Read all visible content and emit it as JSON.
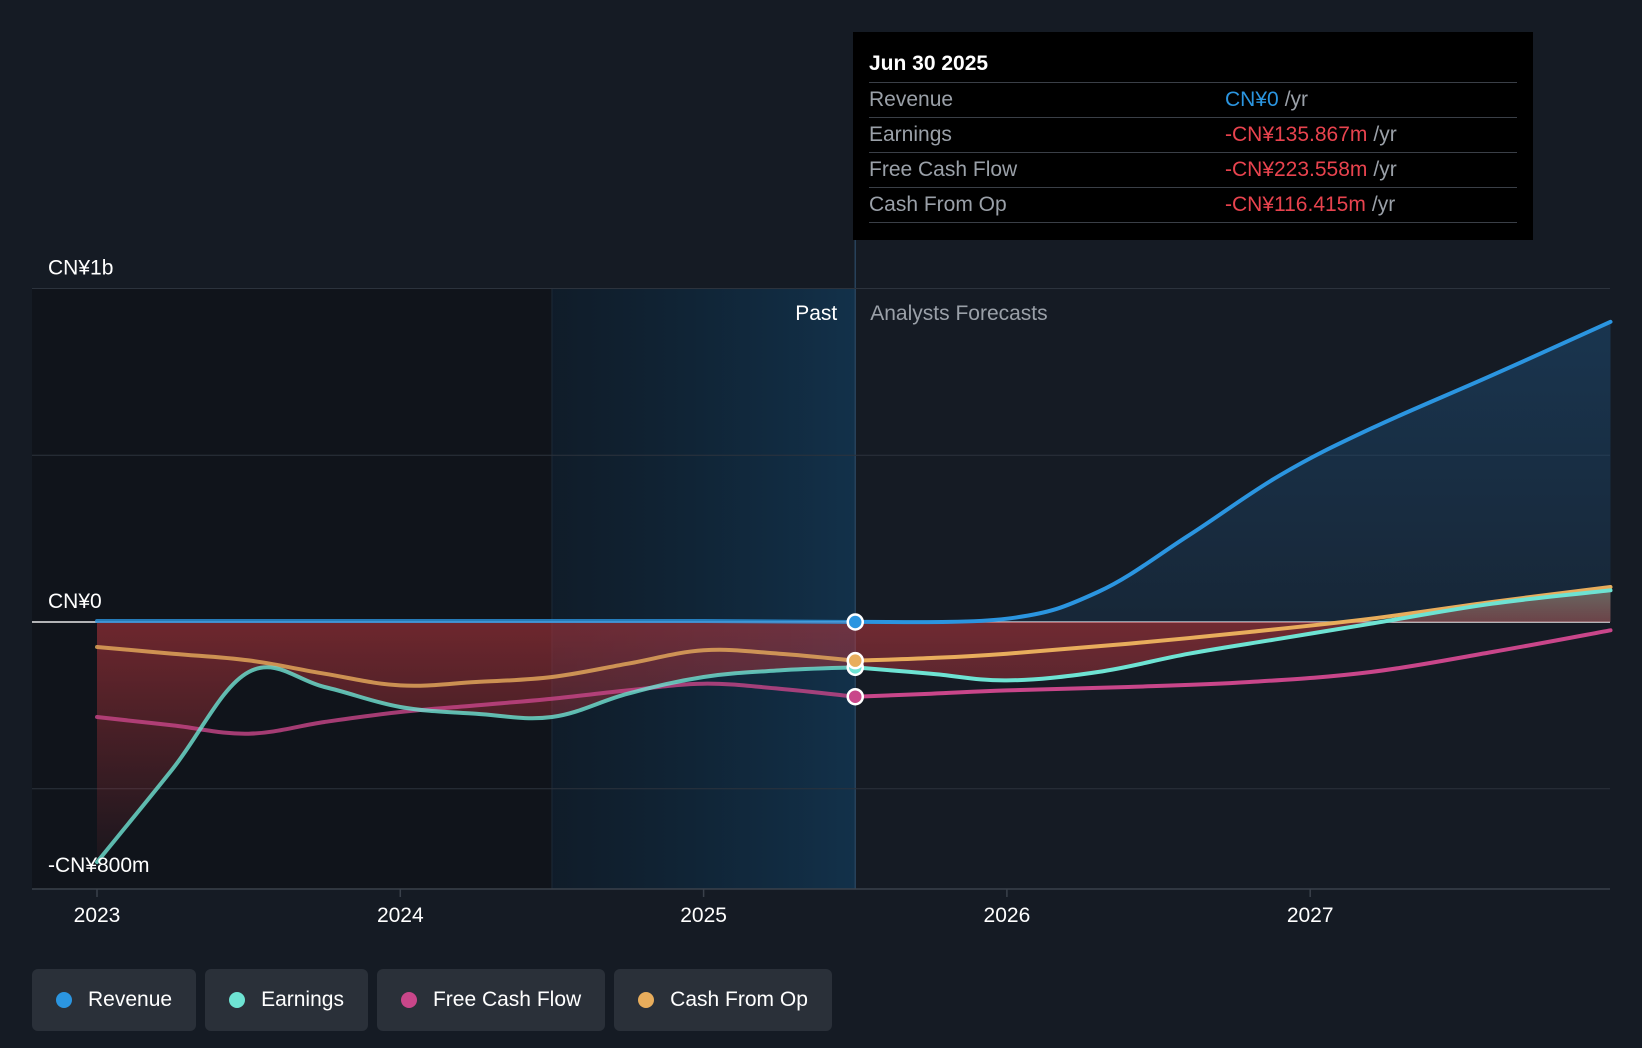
{
  "chart_data": {
    "type": "line",
    "x_ticks": [
      "2023",
      "2024",
      "2025",
      "2026",
      "2027"
    ],
    "y_ticks": [
      {
        "label": "CN¥1b",
        "value": 1000
      },
      {
        "label": "CN¥0",
        "value": 0
      },
      {
        "label": "-CN¥800m",
        "value": -800
      }
    ],
    "ylim": [
      -800,
      1000
    ],
    "xlim": [
      2022.79,
      2027.99
    ],
    "past_label": "Past",
    "forecast_label": "Analysts Forecasts",
    "divider_x": 2025.5,
    "highlight_start_x": 2024.5,
    "series": [
      {
        "name": "Revenue",
        "color": "#2b95e0",
        "points": [
          [
            2023.0,
            3
          ],
          [
            2024.0,
            3
          ],
          [
            2025.0,
            3
          ],
          [
            2025.5,
            0
          ],
          [
            2026.0,
            10
          ],
          [
            2026.3,
            90
          ],
          [
            2026.6,
            260
          ],
          [
            2026.9,
            440
          ],
          [
            2027.2,
            580
          ],
          [
            2027.6,
            740
          ],
          [
            2027.99,
            900
          ]
        ]
      },
      {
        "name": "Earnings",
        "color": "#6ee3d3",
        "points": [
          [
            2023.0,
            -720
          ],
          [
            2023.25,
            -440
          ],
          [
            2023.5,
            -150
          ],
          [
            2023.75,
            -195
          ],
          [
            2024.0,
            -255
          ],
          [
            2024.25,
            -275
          ],
          [
            2024.5,
            -285
          ],
          [
            2024.75,
            -215
          ],
          [
            2025.0,
            -165
          ],
          [
            2025.25,
            -145
          ],
          [
            2025.5,
            -136
          ],
          [
            2025.75,
            -155
          ],
          [
            2026.0,
            -175
          ],
          [
            2026.3,
            -150
          ],
          [
            2026.6,
            -95
          ],
          [
            2026.9,
            -50
          ],
          [
            2027.2,
            -5
          ],
          [
            2027.6,
            55
          ],
          [
            2027.99,
            95
          ]
        ]
      },
      {
        "name": "Free Cash Flow",
        "color": "#c9468a",
        "points": [
          [
            2023.0,
            -285
          ],
          [
            2023.25,
            -310
          ],
          [
            2023.5,
            -335
          ],
          [
            2023.75,
            -300
          ],
          [
            2024.0,
            -270
          ],
          [
            2024.25,
            -250
          ],
          [
            2024.5,
            -230
          ],
          [
            2024.75,
            -205
          ],
          [
            2025.0,
            -185
          ],
          [
            2025.25,
            -200
          ],
          [
            2025.5,
            -224
          ],
          [
            2025.75,
            -215
          ],
          [
            2026.0,
            -205
          ],
          [
            2026.4,
            -195
          ],
          [
            2026.8,
            -180
          ],
          [
            2027.2,
            -150
          ],
          [
            2027.6,
            -90
          ],
          [
            2027.99,
            -25
          ]
        ]
      },
      {
        "name": "Cash From Op",
        "color": "#e8ad5c",
        "points": [
          [
            2023.0,
            -75
          ],
          [
            2023.25,
            -95
          ],
          [
            2023.5,
            -115
          ],
          [
            2023.75,
            -155
          ],
          [
            2024.0,
            -190
          ],
          [
            2024.25,
            -180
          ],
          [
            2024.5,
            -165
          ],
          [
            2024.75,
            -125
          ],
          [
            2025.0,
            -85
          ],
          [
            2025.25,
            -95
          ],
          [
            2025.5,
            -116
          ],
          [
            2025.75,
            -108
          ],
          [
            2026.0,
            -95
          ],
          [
            2026.4,
            -65
          ],
          [
            2026.8,
            -30
          ],
          [
            2027.2,
            10
          ],
          [
            2027.6,
            60
          ],
          [
            2027.99,
            105
          ]
        ]
      }
    ],
    "marker_x": 2025.5
  },
  "tooltip": {
    "date": "Jun 30 2025",
    "rows": [
      {
        "label": "Revenue",
        "value": "CN¥0",
        "unit": "/yr",
        "color": "#2b95e0"
      },
      {
        "label": "Earnings",
        "value": "-CN¥135.867m",
        "unit": "/yr",
        "color": "#e8434e"
      },
      {
        "label": "Free Cash Flow",
        "value": "-CN¥223.558m",
        "unit": "/yr",
        "color": "#e8434e"
      },
      {
        "label": "Cash From Op",
        "value": "-CN¥116.415m",
        "unit": "/yr",
        "color": "#e8434e"
      }
    ]
  },
  "legend": [
    {
      "label": "Revenue",
      "color": "#2b95e0"
    },
    {
      "label": "Earnings",
      "color": "#6ee3d3"
    },
    {
      "label": "Free Cash Flow",
      "color": "#c9468a"
    },
    {
      "label": "Cash From Op",
      "color": "#e8ad5c"
    }
  ]
}
